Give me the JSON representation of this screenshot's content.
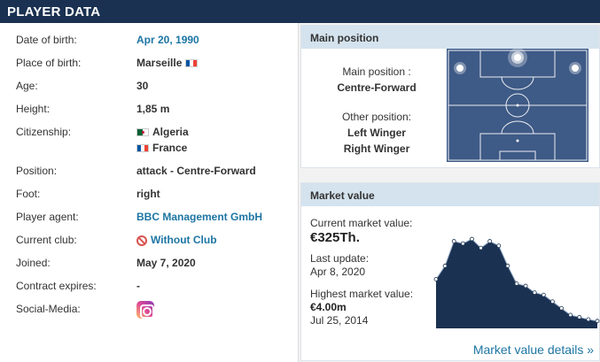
{
  "header": {
    "title": "PLAYER DATA"
  },
  "facts": [
    {
      "label": "Date of birth:",
      "value": "Apr 20, 1990",
      "link": true
    },
    {
      "label": "Place of birth:",
      "value": "Marseille"
    },
    {
      "label": "Age:",
      "value": "30"
    },
    {
      "label": "Height:",
      "value": "1,85 m"
    },
    {
      "label": "Citizenship:",
      "value": "Algeria",
      "value2": "France"
    },
    {
      "label": "Position:",
      "value": "attack - Centre-Forward"
    },
    {
      "label": "Foot:",
      "value": "right"
    },
    {
      "label": "Player agent:",
      "value": "BBC Management GmbH",
      "link": true
    },
    {
      "label": "Current club:",
      "value": "Without Club",
      "link": true
    },
    {
      "label": "Joined:",
      "value": "May 7, 2020"
    },
    {
      "label": "Contract expires:",
      "value": "-"
    },
    {
      "label": "Social-Media:",
      "value": ""
    }
  ],
  "main_position": {
    "title": "Main position",
    "main_label": "Main position :",
    "main_value": "Centre-Forward",
    "other_label": "Other position:",
    "other_values": [
      "Left Winger",
      "Right Winger"
    ]
  },
  "market_value": {
    "title": "Market value",
    "current_label": "Current market value:",
    "current_value": "€325Th.",
    "update_label": "Last update:",
    "update_value": "Apr 8, 2020",
    "highest_label": "Highest market value:",
    "highest_value": "€4.00m",
    "highest_date": "Jul 25, 2014",
    "details_link": "Market value details »",
    "chart_series": [
      2.2,
      2.8,
      3.9,
      3.8,
      4.0,
      3.6,
      3.9,
      3.7,
      2.8,
      2.0,
      1.9,
      1.6,
      1.5,
      1.2,
      0.9,
      0.6,
      0.5,
      0.4,
      0.33
    ]
  },
  "colors": {
    "header_bg": "#1a3151",
    "link": "#1d75a3",
    "box_title_bg": "#d4e3ee",
    "pitch": "#3e5a86",
    "chart_fill": "#1a3151"
  }
}
